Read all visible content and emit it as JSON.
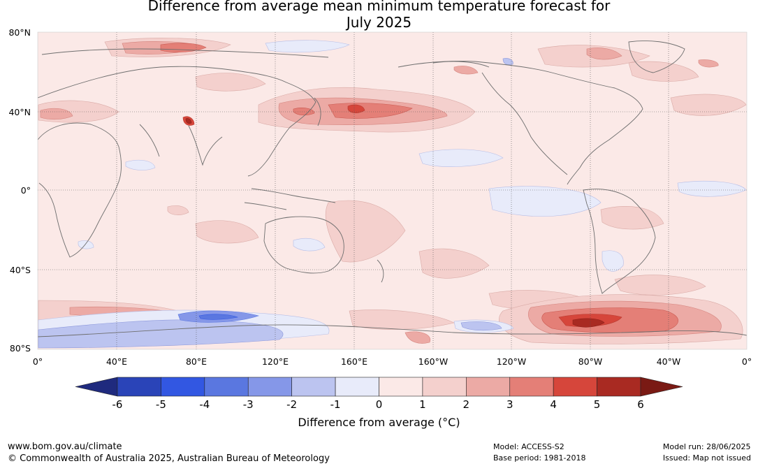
{
  "title": {
    "line1": "Difference from average mean minimum temperature forecast for",
    "line2": "July 2025"
  },
  "map": {
    "lat_labels": [
      "80°N",
      "40°N",
      "0°",
      "40°S",
      "80°S"
    ],
    "lon_labels": [
      "0°",
      "40°E",
      "80°E",
      "120°E",
      "160°E",
      "160°W",
      "120°W",
      "80°W",
      "40°W",
      "0°"
    ],
    "background_color": "#fbe9e7",
    "coast_color": "#6e6e6e"
  },
  "colorbar": {
    "label": "Difference from average (°C)",
    "ticks": [
      "-6",
      "-5",
      "-4",
      "-3",
      "-2",
      "-1",
      "0",
      "1",
      "2",
      "3",
      "4",
      "5",
      "6"
    ],
    "colors": [
      "#1f2a7e",
      "#2a44b8",
      "#3257e2",
      "#5a77e0",
      "#8597e8",
      "#bcc4f0",
      "#e8ebfa",
      "#fbe9e7",
      "#f4d0cd",
      "#ecaaa5",
      "#e47f77",
      "#d6463b",
      "#a92a22",
      "#7a1a14"
    ]
  },
  "footer": {
    "website": "www.bom.gov.au/climate",
    "copyright": "© Commonwealth of Australia 2025, Australian Bureau of Meteorology",
    "model": "Model: ACCESS-S2",
    "base_period": "Base period: 1981-2018",
    "model_run": "Model run: 28/06/2025",
    "issued": "Issued: Map not issued"
  }
}
